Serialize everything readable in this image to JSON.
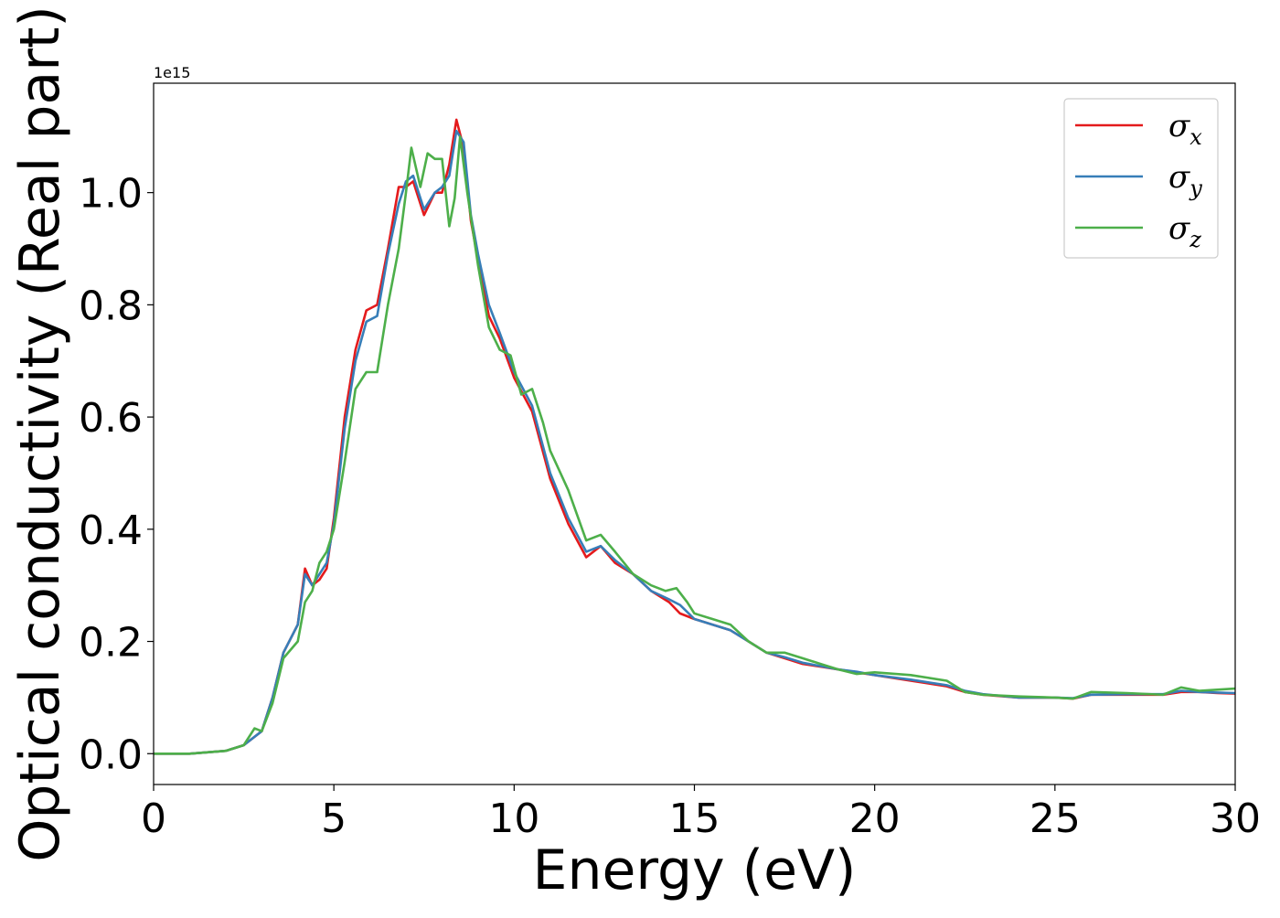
{
  "chart_data": {
    "type": "line",
    "xlabel": "Energy (eV)",
    "ylabel": "Optical conductivity (Real part)",
    "y_offset_label": "1e15",
    "xlim": [
      0,
      30
    ],
    "ylim": [
      -0.055,
      1.195
    ],
    "xticks": [
      0,
      5,
      10,
      15,
      20,
      25,
      30
    ],
    "xtick_labels": [
      "0",
      "5",
      "10",
      "15",
      "20",
      "25",
      "30"
    ],
    "yticks": [
      0.0,
      0.2,
      0.4,
      0.6,
      0.8,
      1.0
    ],
    "ytick_labels": [
      "0.0",
      "0.2",
      "0.4",
      "0.6",
      "0.8",
      "1.0"
    ],
    "grid": false,
    "legend_position": "top-right",
    "series": [
      {
        "name": "σ",
        "subscript": "x",
        "color": "#e41a1c",
        "x": [
          0,
          1,
          2,
          2.5,
          3,
          3.3,
          3.6,
          4.0,
          4.2,
          4.4,
          4.6,
          4.8,
          5.0,
          5.3,
          5.6,
          5.9,
          6.2,
          6.5,
          6.8,
          7.0,
          7.2,
          7.5,
          7.8,
          8.0,
          8.2,
          8.4,
          8.6,
          8.8,
          9.0,
          9.3,
          9.6,
          10.0,
          10.5,
          11.0,
          11.5,
          12.0,
          12.4,
          12.8,
          13.3,
          13.8,
          14.3,
          14.6,
          15.0,
          15.5,
          16.0,
          16.5,
          17.0,
          17.5,
          18.0,
          18.5,
          19.0,
          19.5,
          20.0,
          21.0,
          22.0,
          22.5,
          23.0,
          24.0,
          25.0,
          25.5,
          26.0,
          27.0,
          28.0,
          28.5,
          29.0,
          29.5,
          30.0
        ],
        "y": [
          0.0,
          0.0,
          0.005,
          0.015,
          0.04,
          0.1,
          0.18,
          0.23,
          0.33,
          0.3,
          0.31,
          0.33,
          0.42,
          0.6,
          0.72,
          0.79,
          0.8,
          0.9,
          1.01,
          1.01,
          1.02,
          0.96,
          1.0,
          1.0,
          1.05,
          1.13,
          1.08,
          0.95,
          0.88,
          0.78,
          0.74,
          0.67,
          0.61,
          0.49,
          0.41,
          0.35,
          0.37,
          0.34,
          0.32,
          0.29,
          0.27,
          0.25,
          0.24,
          0.23,
          0.22,
          0.2,
          0.18,
          0.17,
          0.16,
          0.155,
          0.15,
          0.145,
          0.14,
          0.13,
          0.12,
          0.11,
          0.105,
          0.1,
          0.1,
          0.098,
          0.105,
          0.105,
          0.105,
          0.11,
          0.11,
          0.108,
          0.107
        ]
      },
      {
        "name": "σ",
        "subscript": "y",
        "color": "#377eb8",
        "x": [
          0,
          1,
          2,
          2.5,
          3,
          3.3,
          3.6,
          4.0,
          4.2,
          4.4,
          4.6,
          4.8,
          5.0,
          5.3,
          5.6,
          5.9,
          6.2,
          6.5,
          6.8,
          7.0,
          7.2,
          7.5,
          7.8,
          8.0,
          8.2,
          8.4,
          8.6,
          8.8,
          9.0,
          9.3,
          9.6,
          10.0,
          10.5,
          11.0,
          11.5,
          12.0,
          12.4,
          12.8,
          13.3,
          13.8,
          14.3,
          14.6,
          15.0,
          15.5,
          16.0,
          16.5,
          17.0,
          17.5,
          18.0,
          18.5,
          19.0,
          19.5,
          20.0,
          21.0,
          22.0,
          22.5,
          23.0,
          24.0,
          25.0,
          25.5,
          26.0,
          27.0,
          28.0,
          28.5,
          29.0,
          29.5,
          30.0
        ],
        "y": [
          0.0,
          0.0,
          0.005,
          0.015,
          0.04,
          0.1,
          0.18,
          0.23,
          0.32,
          0.3,
          0.32,
          0.34,
          0.41,
          0.58,
          0.7,
          0.77,
          0.78,
          0.89,
          0.98,
          1.02,
          1.03,
          0.97,
          1.0,
          1.01,
          1.03,
          1.11,
          1.09,
          0.96,
          0.89,
          0.8,
          0.75,
          0.68,
          0.62,
          0.5,
          0.42,
          0.36,
          0.37,
          0.345,
          0.32,
          0.29,
          0.275,
          0.265,
          0.24,
          0.23,
          0.22,
          0.2,
          0.18,
          0.172,
          0.162,
          0.156,
          0.15,
          0.146,
          0.14,
          0.132,
          0.122,
          0.112,
          0.106,
          0.1,
          0.1,
          0.099,
          0.105,
          0.106,
          0.106,
          0.112,
          0.11,
          0.109,
          0.108
        ]
      },
      {
        "name": "σ",
        "subscript": "z",
        "color": "#4daf4a",
        "x": [
          0,
          1,
          2,
          2.5,
          2.8,
          3.0,
          3.3,
          3.6,
          4.0,
          4.2,
          4.4,
          4.6,
          4.8,
          5.0,
          5.3,
          5.6,
          5.9,
          6.2,
          6.5,
          6.8,
          7.0,
          7.15,
          7.4,
          7.6,
          7.8,
          8.0,
          8.2,
          8.35,
          8.5,
          8.7,
          9.0,
          9.3,
          9.6,
          9.9,
          10.2,
          10.5,
          10.8,
          11.0,
          11.5,
          12.0,
          12.4,
          12.8,
          13.3,
          13.8,
          14.2,
          14.5,
          14.8,
          15.0,
          15.5,
          16.0,
          16.5,
          17.0,
          17.5,
          18.0,
          18.5,
          19.0,
          19.5,
          20.0,
          21.0,
          21.5,
          22.0,
          22.5,
          23.0,
          24.0,
          25.0,
          25.5,
          26.0,
          27.0,
          28.0,
          28.5,
          29.0,
          29.5,
          30.0
        ],
        "y": [
          0.0,
          0.0,
          0.005,
          0.015,
          0.045,
          0.04,
          0.09,
          0.17,
          0.2,
          0.27,
          0.29,
          0.34,
          0.36,
          0.4,
          0.52,
          0.65,
          0.68,
          0.68,
          0.8,
          0.9,
          1.0,
          1.08,
          1.01,
          1.07,
          1.06,
          1.06,
          0.94,
          0.99,
          1.1,
          1.0,
          0.87,
          0.76,
          0.72,
          0.71,
          0.64,
          0.65,
          0.59,
          0.54,
          0.47,
          0.38,
          0.39,
          0.36,
          0.32,
          0.3,
          0.29,
          0.295,
          0.27,
          0.25,
          0.24,
          0.23,
          0.2,
          0.18,
          0.18,
          0.17,
          0.16,
          0.15,
          0.142,
          0.145,
          0.14,
          0.135,
          0.13,
          0.11,
          0.105,
          0.102,
          0.1,
          0.098,
          0.11,
          0.108,
          0.105,
          0.118,
          0.112,
          0.114,
          0.116
        ]
      }
    ]
  }
}
